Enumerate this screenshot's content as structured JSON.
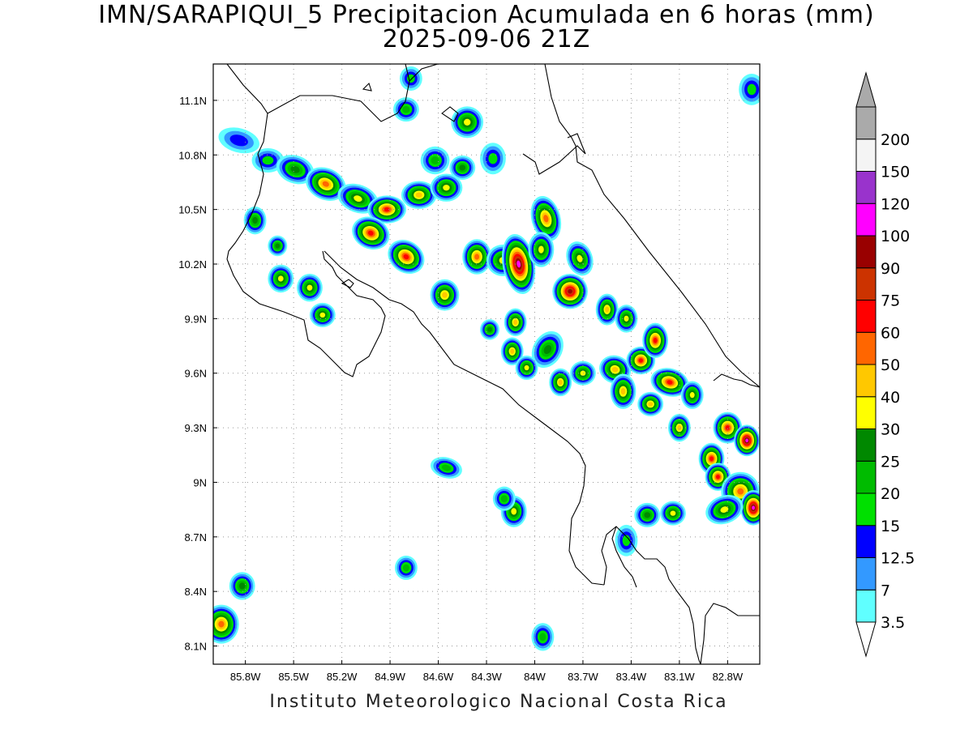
{
  "title": {
    "line1": "IMN/SARAPIQUI_5 Precipitacion Acumulada en 6 horas (mm)",
    "line2": "2025-09-06 21Z"
  },
  "footer": "Instituto Meteorologico Nacional Costa Rica",
  "axes": {
    "lon_range": [
      -86.0,
      -82.6
    ],
    "lat_range": [
      8.0,
      11.3
    ],
    "x_ticks": [
      {
        "lon": -85.8,
        "label": "85.8W"
      },
      {
        "lon": -85.5,
        "label": "85.5W"
      },
      {
        "lon": -85.2,
        "label": "85.2W"
      },
      {
        "lon": -84.9,
        "label": "84.9W"
      },
      {
        "lon": -84.6,
        "label": "84.6W"
      },
      {
        "lon": -84.3,
        "label": "84.3W"
      },
      {
        "lon": -84.0,
        "label": "84W"
      },
      {
        "lon": -83.7,
        "label": "83.7W"
      },
      {
        "lon": -83.4,
        "label": "83.4W"
      },
      {
        "lon": -83.1,
        "label": "83.1W"
      },
      {
        "lon": -82.8,
        "label": "82.8W"
      }
    ],
    "y_ticks": [
      {
        "lat": 11.1,
        "label": "11.1N"
      },
      {
        "lat": 10.8,
        "label": "10.8N"
      },
      {
        "lat": 10.5,
        "label": "10.5N"
      },
      {
        "lat": 10.2,
        "label": "10.2N"
      },
      {
        "lat": 9.9,
        "label": "9.9N"
      },
      {
        "lat": 9.6,
        "label": "9.6N"
      },
      {
        "lat": 9.3,
        "label": "9.3N"
      },
      {
        "lat": 9.0,
        "label": "9N"
      },
      {
        "lat": 8.7,
        "label": "8.7N"
      },
      {
        "lat": 8.4,
        "label": "8.4N"
      },
      {
        "lat": 8.1,
        "label": "8.1N"
      }
    ],
    "grid": "dotted"
  },
  "colorbar": {
    "levels": [
      "3.5",
      "7",
      "12.5",
      "15",
      "20",
      "25",
      "30",
      "40",
      "50",
      "60",
      "75",
      "90",
      "100",
      "120",
      "150",
      "200"
    ],
    "colors": [
      "#60ffff",
      "#3399ff",
      "#0000ff",
      "#00e000",
      "#00bb00",
      "#008800",
      "#ffff00",
      "#ffc800",
      "#ff6600",
      "#ff0000",
      "#cc3300",
      "#990000",
      "#ff00ff",
      "#9933cc",
      "#f4f4f4",
      "#aaaaaa"
    ]
  },
  "rain_cells": [
    {
      "lon": -85.84,
      "lat": 10.88,
      "rx": 0.1,
      "ry": 0.04,
      "rot": 15,
      "lvl": 2
    },
    {
      "lon": -85.66,
      "lat": 10.77,
      "rx": 0.07,
      "ry": 0.04,
      "rot": 0,
      "lvl": 3
    },
    {
      "lon": -85.49,
      "lat": 10.72,
      "rx": 0.09,
      "ry": 0.05,
      "rot": 20,
      "lvl": 5
    },
    {
      "lon": -85.3,
      "lat": 10.64,
      "rx": 0.1,
      "ry": 0.06,
      "rot": 25,
      "lvl": 8
    },
    {
      "lon": -85.1,
      "lat": 10.56,
      "rx": 0.1,
      "ry": 0.05,
      "rot": 20,
      "lvl": 6
    },
    {
      "lon": -84.92,
      "lat": 10.5,
      "rx": 0.09,
      "ry": 0.05,
      "rot": 0,
      "lvl": 9
    },
    {
      "lon": -84.72,
      "lat": 10.58,
      "rx": 0.08,
      "ry": 0.05,
      "rot": 0,
      "lvl": 7
    },
    {
      "lon": -84.55,
      "lat": 10.62,
      "rx": 0.07,
      "ry": 0.05,
      "rot": 0,
      "lvl": 6
    },
    {
      "lon": -84.62,
      "lat": 10.77,
      "rx": 0.06,
      "ry": 0.05,
      "rot": 0,
      "lvl": 4
    },
    {
      "lon": -84.45,
      "lat": 10.73,
      "rx": 0.05,
      "ry": 0.04,
      "rot": 0,
      "lvl": 5
    },
    {
      "lon": -84.42,
      "lat": 10.98,
      "rx": 0.07,
      "ry": 0.06,
      "rot": 0,
      "lvl": 6
    },
    {
      "lon": -84.8,
      "lat": 11.05,
      "rx": 0.05,
      "ry": 0.04,
      "rot": 0,
      "lvl": 4
    },
    {
      "lon": -84.77,
      "lat": 11.22,
      "rx": 0.04,
      "ry": 0.04,
      "rot": 0,
      "lvl": 3
    },
    {
      "lon": -84.26,
      "lat": 10.78,
      "rx": 0.05,
      "ry": 0.06,
      "rot": 0,
      "lvl": 3
    },
    {
      "lon": -85.02,
      "lat": 10.37,
      "rx": 0.09,
      "ry": 0.06,
      "rot": 25,
      "lvl": 9
    },
    {
      "lon": -84.8,
      "lat": 10.24,
      "rx": 0.09,
      "ry": 0.06,
      "rot": 35,
      "lvl": 9
    },
    {
      "lon": -84.56,
      "lat": 10.03,
      "rx": 0.06,
      "ry": 0.06,
      "rot": 0,
      "lvl": 7
    },
    {
      "lon": -84.36,
      "lat": 10.24,
      "rx": 0.06,
      "ry": 0.07,
      "rot": 0,
      "lvl": 8
    },
    {
      "lon": -84.2,
      "lat": 10.22,
      "rx": 0.07,
      "ry": 0.06,
      "rot": 0,
      "lvl": 6
    },
    {
      "lon": -84.1,
      "lat": 10.2,
      "rx": 0.07,
      "ry": 0.14,
      "rot": -10,
      "lvl": 12
    },
    {
      "lon": -83.93,
      "lat": 10.45,
      "rx": 0.06,
      "ry": 0.1,
      "rot": -15,
      "lvl": 8
    },
    {
      "lon": -83.96,
      "lat": 10.28,
      "rx": 0.05,
      "ry": 0.07,
      "rot": 0,
      "lvl": 6
    },
    {
      "lon": -83.78,
      "lat": 10.05,
      "rx": 0.08,
      "ry": 0.07,
      "rot": 0,
      "lvl": 11
    },
    {
      "lon": -83.72,
      "lat": 10.23,
      "rx": 0.05,
      "ry": 0.07,
      "rot": -20,
      "lvl": 6
    },
    {
      "lon": -84.12,
      "lat": 9.88,
      "rx": 0.04,
      "ry": 0.05,
      "rot": 0,
      "lvl": 7
    },
    {
      "lon": -84.14,
      "lat": 9.72,
      "rx": 0.04,
      "ry": 0.05,
      "rot": 0,
      "lvl": 7
    },
    {
      "lon": -83.92,
      "lat": 9.73,
      "rx": 0.06,
      "ry": 0.08,
      "rot": 30,
      "lvl": 5
    },
    {
      "lon": -83.55,
      "lat": 9.95,
      "rx": 0.04,
      "ry": 0.06,
      "rot": 0,
      "lvl": 7
    },
    {
      "lon": -83.43,
      "lat": 9.9,
      "rx": 0.04,
      "ry": 0.05,
      "rot": 0,
      "lvl": 6
    },
    {
      "lon": -83.5,
      "lat": 9.62,
      "rx": 0.07,
      "ry": 0.05,
      "rot": 20,
      "lvl": 7
    },
    {
      "lon": -83.7,
      "lat": 9.6,
      "rx": 0.05,
      "ry": 0.04,
      "rot": 0,
      "lvl": 6
    },
    {
      "lon": -83.34,
      "lat": 9.67,
      "rx": 0.06,
      "ry": 0.05,
      "rot": 0,
      "lvl": 9
    },
    {
      "lon": -83.25,
      "lat": 9.78,
      "rx": 0.05,
      "ry": 0.07,
      "rot": 0,
      "lvl": 9
    },
    {
      "lon": -83.45,
      "lat": 9.5,
      "rx": 0.05,
      "ry": 0.07,
      "rot": 0,
      "lvl": 7
    },
    {
      "lon": -83.16,
      "lat": 9.55,
      "rx": 0.09,
      "ry": 0.05,
      "rot": 15,
      "lvl": 9
    },
    {
      "lon": -83.28,
      "lat": 9.43,
      "rx": 0.05,
      "ry": 0.04,
      "rot": 0,
      "lvl": 7
    },
    {
      "lon": -83.1,
      "lat": 9.3,
      "rx": 0.04,
      "ry": 0.05,
      "rot": 0,
      "lvl": 7
    },
    {
      "lon": -83.02,
      "lat": 9.48,
      "rx": 0.04,
      "ry": 0.05,
      "rot": 0,
      "lvl": 6
    },
    {
      "lon": -82.8,
      "lat": 9.3,
      "rx": 0.06,
      "ry": 0.06,
      "rot": 0,
      "lvl": 9
    },
    {
      "lon": -82.68,
      "lat": 9.23,
      "rx": 0.05,
      "ry": 0.06,
      "rot": 0,
      "lvl": 12
    },
    {
      "lon": -82.9,
      "lat": 9.13,
      "rx": 0.05,
      "ry": 0.06,
      "rot": 0,
      "lvl": 9
    },
    {
      "lon": -82.86,
      "lat": 9.03,
      "rx": 0.05,
      "ry": 0.05,
      "rot": 0,
      "lvl": 9
    },
    {
      "lon": -82.72,
      "lat": 8.95,
      "rx": 0.09,
      "ry": 0.08,
      "rot": 0,
      "lvl": 8
    },
    {
      "lon": -82.64,
      "lat": 8.86,
      "rx": 0.05,
      "ry": 0.07,
      "rot": 0,
      "lvl": 12
    },
    {
      "lon": -82.82,
      "lat": 8.85,
      "rx": 0.09,
      "ry": 0.05,
      "rot": -20,
      "lvl": 6
    },
    {
      "lon": -83.14,
      "lat": 8.83,
      "rx": 0.05,
      "ry": 0.04,
      "rot": 0,
      "lvl": 6
    },
    {
      "lon": -83.3,
      "lat": 8.82,
      "rx": 0.05,
      "ry": 0.04,
      "rot": 0,
      "lvl": 5
    },
    {
      "lon": -83.43,
      "lat": 8.68,
      "rx": 0.04,
      "ry": 0.06,
      "rot": 0,
      "lvl": 3
    },
    {
      "lon": -85.95,
      "lat": 8.22,
      "rx": 0.08,
      "ry": 0.08,
      "rot": 0,
      "lvl": 8
    },
    {
      "lon": -85.82,
      "lat": 8.43,
      "rx": 0.05,
      "ry": 0.05,
      "rot": 0,
      "lvl": 5
    },
    {
      "lon": -85.32,
      "lat": 9.92,
      "rx": 0.05,
      "ry": 0.04,
      "rot": 0,
      "lvl": 6
    },
    {
      "lon": -85.4,
      "lat": 10.07,
      "rx": 0.05,
      "ry": 0.05,
      "rot": 0,
      "lvl": 6
    },
    {
      "lon": -85.58,
      "lat": 10.12,
      "rx": 0.05,
      "ry": 0.05,
      "rot": 0,
      "lvl": 6
    },
    {
      "lon": -85.74,
      "lat": 10.44,
      "rx": 0.04,
      "ry": 0.05,
      "rot": 0,
      "lvl": 5
    },
    {
      "lon": -85.6,
      "lat": 10.3,
      "rx": 0.03,
      "ry": 0.03,
      "rot": 0,
      "lvl": 5
    },
    {
      "lon": -84.55,
      "lat": 9.08,
      "rx": 0.07,
      "ry": 0.03,
      "rot": 15,
      "lvl": 4
    },
    {
      "lon": -84.13,
      "lat": 8.84,
      "rx": 0.05,
      "ry": 0.06,
      "rot": 0,
      "lvl": 6
    },
    {
      "lon": -84.19,
      "lat": 8.91,
      "rx": 0.04,
      "ry": 0.04,
      "rot": 0,
      "lvl": 4
    },
    {
      "lon": -84.8,
      "lat": 8.53,
      "rx": 0.04,
      "ry": 0.04,
      "rot": 0,
      "lvl": 4
    },
    {
      "lon": -83.95,
      "lat": 8.15,
      "rx": 0.04,
      "ry": 0.05,
      "rot": 0,
      "lvl": 4
    },
    {
      "lon": -84.05,
      "lat": 9.63,
      "rx": 0.04,
      "ry": 0.04,
      "rot": 0,
      "lvl": 6
    },
    {
      "lon": -83.84,
      "lat": 9.55,
      "rx": 0.04,
      "ry": 0.05,
      "rot": 0,
      "lvl": 7
    },
    {
      "lon": -84.28,
      "lat": 9.84,
      "rx": 0.03,
      "ry": 0.03,
      "rot": 0,
      "lvl": 5
    },
    {
      "lon": -82.65,
      "lat": 11.16,
      "rx": 0.05,
      "ry": 0.06,
      "rot": 0,
      "lvl": 3
    }
  ]
}
